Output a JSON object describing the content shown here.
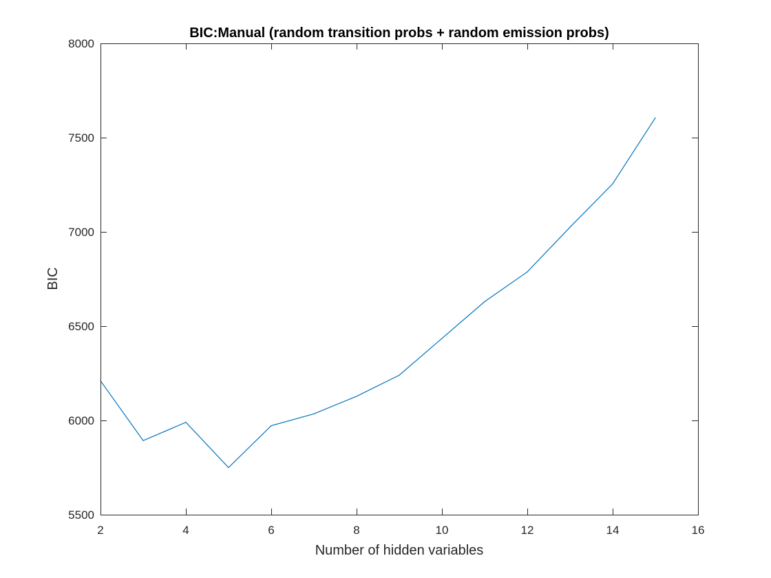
{
  "chart_data": {
    "type": "line",
    "title": "BIC:Manual (random transition probs + random emission probs)",
    "xlabel": "Number of hidden variables",
    "ylabel": "BIC",
    "xlim": [
      2,
      16
    ],
    "ylim": [
      5500,
      8000
    ],
    "xticks": [
      2,
      4,
      6,
      8,
      10,
      12,
      14,
      16
    ],
    "yticks": [
      5500,
      6000,
      6500,
      7000,
      7500,
      8000
    ],
    "grid": false,
    "legend": "none",
    "series": [
      {
        "color": "#0072BD",
        "x": [
          2,
          3,
          4,
          5,
          6,
          7,
          8,
          9,
          10,
          11,
          12,
          13,
          14,
          15
        ],
        "y": [
          6210,
          5893,
          5990,
          5750,
          5972,
          6035,
          6128,
          6240,
          6435,
          6630,
          6788,
          7025,
          7255,
          7605
        ]
      }
    ]
  }
}
